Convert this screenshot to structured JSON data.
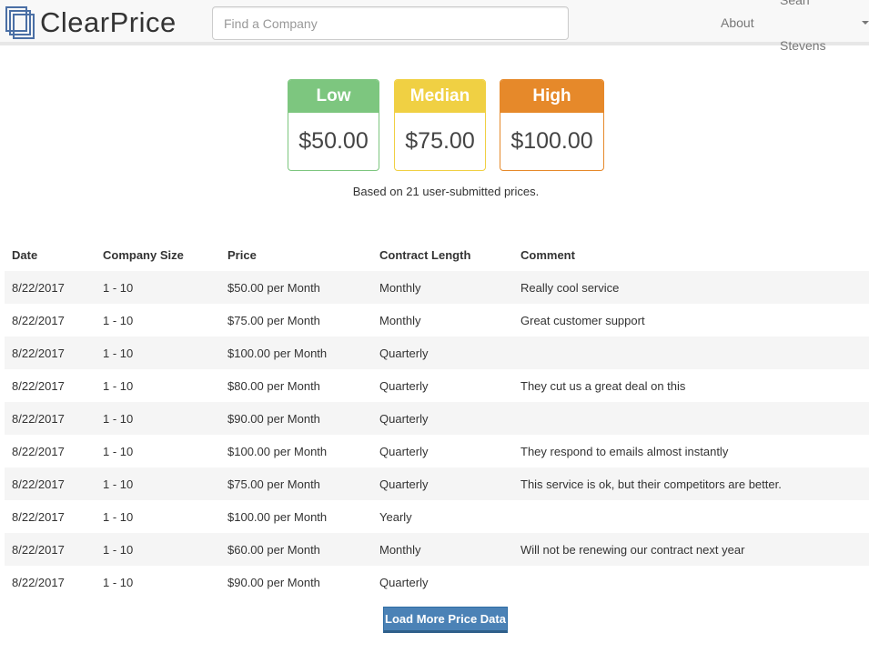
{
  "brand": {
    "name": "ClearPrice"
  },
  "search": {
    "placeholder": "Find a Company"
  },
  "nav": {
    "about": "About",
    "user": "Sean Stevens"
  },
  "cards": {
    "low": {
      "label": "Low",
      "value": "$50.00",
      "color": "#7dc67f"
    },
    "median": {
      "label": "Median",
      "value": "$75.00",
      "color": "#f0d043"
    },
    "high": {
      "label": "High",
      "value": "$100.00",
      "color": "#e6892a"
    }
  },
  "summary": "Based on 21 user-submitted prices.",
  "table": {
    "headers": [
      "Date",
      "Company Size",
      "Price",
      "Contract Length",
      "Comment"
    ],
    "rows": [
      [
        "8/22/2017",
        "1 - 10",
        "$50.00 per Month",
        "Monthly",
        "Really cool service"
      ],
      [
        "8/22/2017",
        "1 - 10",
        "$75.00 per Month",
        "Monthly",
        "Great customer support"
      ],
      [
        "8/22/2017",
        "1 - 10",
        "$100.00 per Month",
        "Quarterly",
        ""
      ],
      [
        "8/22/2017",
        "1 - 10",
        "$80.00 per Month",
        "Quarterly",
        "They cut us a great deal on this"
      ],
      [
        "8/22/2017",
        "1 - 10",
        "$90.00 per Month",
        "Quarterly",
        ""
      ],
      [
        "8/22/2017",
        "1 - 10",
        "$100.00 per Month",
        "Quarterly",
        "They respond to emails almost instantly"
      ],
      [
        "8/22/2017",
        "1 - 10",
        "$75.00 per Month",
        "Quarterly",
        "This service is ok, but their competitors are better."
      ],
      [
        "8/22/2017",
        "1 - 10",
        "$100.00 per Month",
        "Yearly",
        ""
      ],
      [
        "8/22/2017",
        "1 - 10",
        "$60.00 per Month",
        "Monthly",
        "Will not be renewing our contract next year"
      ],
      [
        "8/22/2017",
        "1 - 10",
        "$90.00 per Month",
        "Quarterly",
        ""
      ]
    ]
  },
  "load_more": "Load More Price Data"
}
